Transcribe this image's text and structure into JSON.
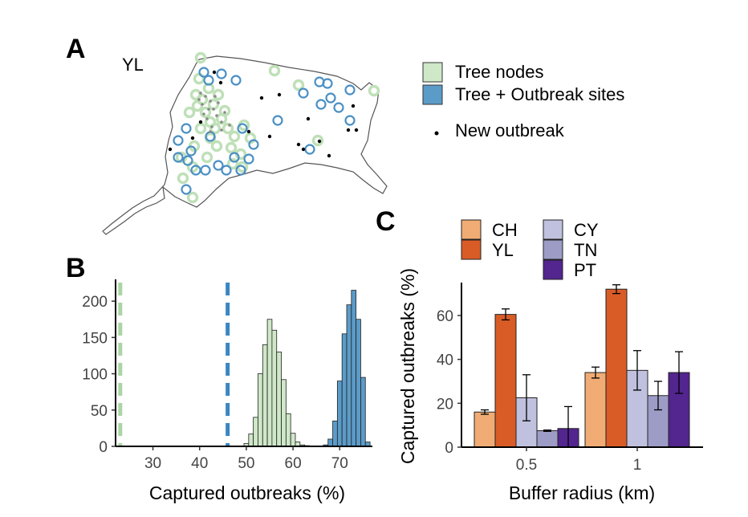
{
  "figure": {
    "panel_a": {
      "letter": "A",
      "region_label": "YL",
      "legend": [
        {
          "label": "Tree nodes",
          "symbol": "square",
          "color": "#cfe8c8"
        },
        {
          "label": "Tree + Outbreak sites",
          "symbol": "square",
          "color": "#5b9bc8"
        },
        {
          "label": "New outbreak",
          "symbol": "dot",
          "color": "#000000"
        }
      ]
    },
    "panel_b": {
      "letter": "B"
    },
    "panel_c": {
      "letter": "C"
    }
  },
  "chart_data": [
    {
      "id": "B",
      "type": "histogram",
      "title": "",
      "xlabel": "Captured outbreaks (%)",
      "ylabel": "",
      "xlim": [
        22,
        77
      ],
      "ylim": [
        0,
        230
      ],
      "xticks": [
        30,
        40,
        50,
        60,
        70
      ],
      "yticks": [
        0,
        50,
        100,
        150,
        200
      ],
      "bin_width": 1,
      "vlines": [
        {
          "x": 23,
          "color": "#a9d6a2",
          "style": "dashed"
        },
        {
          "x": 46,
          "color": "#3a86c3",
          "style": "dashed"
        }
      ],
      "series": [
        {
          "name": "Tree nodes",
          "color": "#cfe8c8",
          "bins": [
            {
              "x": 50,
              "count": 4
            },
            {
              "x": 51,
              "count": 17
            },
            {
              "x": 52,
              "count": 40
            },
            {
              "x": 53,
              "count": 100
            },
            {
              "x": 54,
              "count": 140
            },
            {
              "x": 55,
              "count": 175
            },
            {
              "x": 56,
              "count": 160
            },
            {
              "x": 57,
              "count": 130
            },
            {
              "x": 58,
              "count": 92
            },
            {
              "x": 59,
              "count": 45
            },
            {
              "x": 60,
              "count": 18
            },
            {
              "x": 61,
              "count": 6
            },
            {
              "x": 62,
              "count": 2
            },
            {
              "x": 63,
              "count": 1
            }
          ]
        },
        {
          "name": "Tree + Outbreak sites",
          "color": "#5b9bc8",
          "bins": [
            {
              "x": 67,
              "count": 2
            },
            {
              "x": 68,
              "count": 10
            },
            {
              "x": 69,
              "count": 35
            },
            {
              "x": 70,
              "count": 90
            },
            {
              "x": 71,
              "count": 155
            },
            {
              "x": 72,
              "count": 195
            },
            {
              "x": 73,
              "count": 215
            },
            {
              "x": 74,
              "count": 175
            },
            {
              "x": 75,
              "count": 95
            },
            {
              "x": 76,
              "count": 6
            }
          ]
        }
      ]
    },
    {
      "id": "C",
      "type": "bar",
      "title": "",
      "xlabel": "Buffer radius (km)",
      "ylabel": "Captured outbreaks (%)",
      "ylim": [
        0,
        75
      ],
      "yticks": [
        0,
        20,
        40,
        60
      ],
      "categories": [
        "0.5",
        "1"
      ],
      "series": [
        {
          "name": "CH",
          "color": "#f0ac74",
          "values": [
            16,
            34
          ],
          "errors": [
            1,
            2.5
          ]
        },
        {
          "name": "YL",
          "color": "#d95c27",
          "values": [
            60.5,
            72
          ],
          "errors": [
            2.5,
            2
          ]
        },
        {
          "name": "CY",
          "color": "#bfc1de",
          "values": [
            22.5,
            35
          ],
          "errors": [
            10.5,
            9
          ]
        },
        {
          "name": "TN",
          "color": "#9c9cc6",
          "values": [
            7.5,
            23.5
          ],
          "errors": [
            0.3,
            6.5
          ]
        },
        {
          "name": "PT",
          "color": "#53258f",
          "values": [
            8.5,
            34
          ],
          "errors": [
            10,
            9.5
          ]
        }
      ]
    }
  ]
}
